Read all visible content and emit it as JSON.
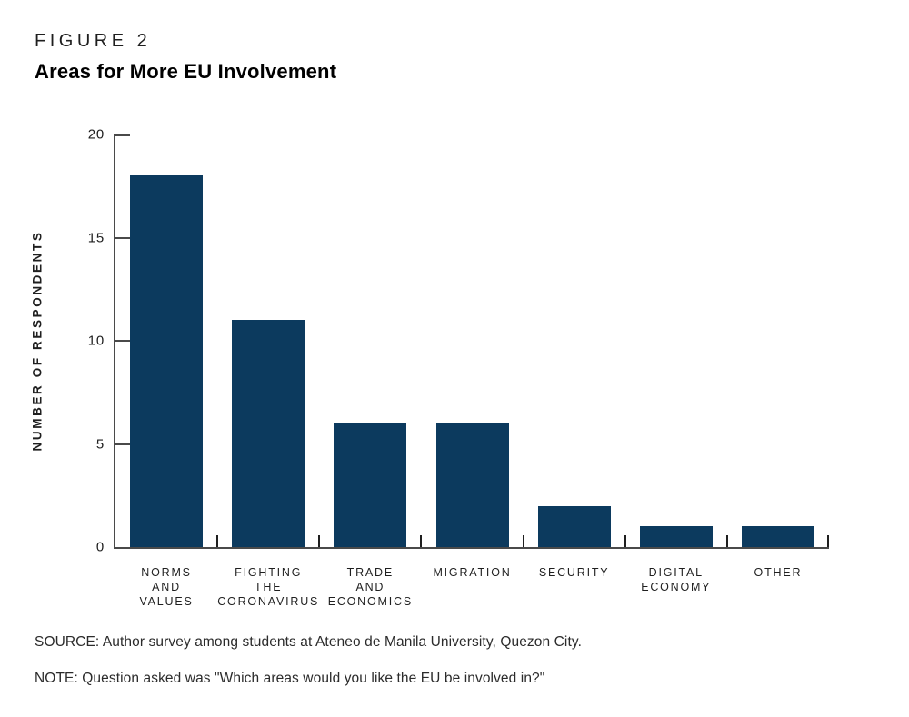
{
  "figure": {
    "label": "FIGURE 2",
    "title": "Areas for More EU Involvement"
  },
  "chart_data": {
    "type": "bar",
    "title": "Areas for More EU Involvement",
    "categories": [
      "Norms and Values",
      "Fighting the Coronavirus",
      "Trade and Economics",
      "Migration",
      "Security",
      "Digital Economy",
      "Other"
    ],
    "category_labels": [
      [
        "NORMS",
        "AND",
        "VALUES"
      ],
      [
        "FIGHTING",
        "THE",
        "CORONAVIRUS"
      ],
      [
        "TRADE",
        "AND",
        "ECONOMICS"
      ],
      [
        "MIGRATION"
      ],
      [
        "SECURITY"
      ],
      [
        "DIGITAL",
        "ECONOMY"
      ],
      [
        "OTHER"
      ]
    ],
    "values": [
      18,
      11,
      6,
      6,
      2,
      1,
      1
    ],
    "xlabel": "",
    "ylabel": "NUMBER OF RESPONDENTS",
    "ylim": [
      0,
      20
    ],
    "yticks": [
      0,
      5,
      10,
      15,
      20
    ],
    "bar_color": "#0c3a5e",
    "axis_color": "#4a4a4a",
    "grid": false,
    "legend": "none"
  },
  "footer": {
    "source": "SOURCE: Author survey among students at Ateneo de Manila University, Quezon City.",
    "note": "NOTE: Question asked was \"Which areas would you like the EU be involved in?\""
  }
}
